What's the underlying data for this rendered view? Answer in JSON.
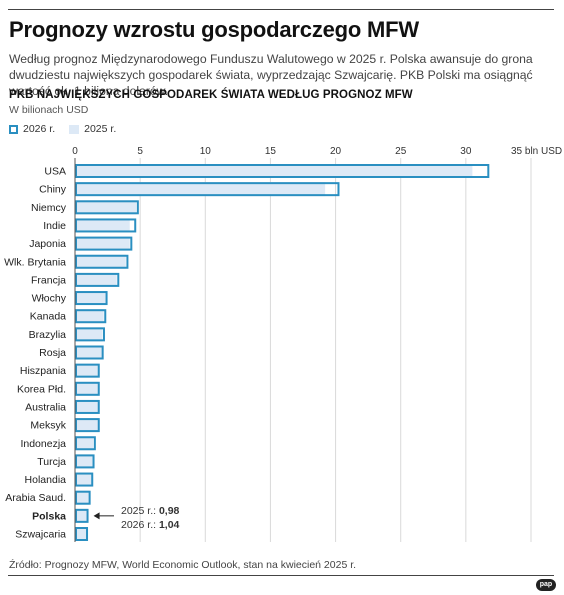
{
  "header": {
    "title": "Prognozy wzrostu gospodarczego MFW",
    "description": "Według prognoz Międzynarodowego Funduszu Walutowego w 2025 r. Polska awansuje do grona dwudziestu największych gospodarek świata, wyprzedzając Szwajcarię. PKB Polski ma osiągnąć wartość ok. 1 biliona dolarów."
  },
  "chart_data": {
    "type": "bar",
    "orientation": "horizontal",
    "title": "PKB NAJWIĘKSZYCH GOSPODAREK ŚWIATA WEDŁUG PROGNOZ MFW",
    "unit_label": "W bilionach USD",
    "xlim": [
      0,
      35
    ],
    "ticks": [
      {
        "value": 0,
        "label": "0"
      },
      {
        "value": 5,
        "label": "5"
      },
      {
        "value": 10,
        "label": "10"
      },
      {
        "value": 15,
        "label": "15"
      },
      {
        "value": 20,
        "label": "20"
      },
      {
        "value": 25,
        "label": "25"
      },
      {
        "value": 30,
        "label": "30"
      },
      {
        "value": 35,
        "label": "35 bln USD"
      }
    ],
    "legend": {
      "placement": "top-left",
      "label_2026": "2026 r.",
      "label_2025": "2025 r."
    },
    "categories": [
      "USA",
      "Chiny",
      "Niemcy",
      "Indie",
      "Japonia",
      "Wlk. Brytania",
      "Francja",
      "Włochy",
      "Kanada",
      "Brazylia",
      "Rosja",
      "Hiszpania",
      "Korea Płd.",
      "Australia",
      "Meksyk",
      "Indonezja",
      "Turcja",
      "Holandia",
      "Arabia Saud.",
      "Polska",
      "Szwajcaria"
    ],
    "highlight": "Polska",
    "series": [
      {
        "name": "2026 r.",
        "style": "outline",
        "color": "#2a8fc1",
        "values": [
          31.8,
          20.3,
          4.9,
          4.7,
          4.4,
          4.1,
          3.4,
          2.5,
          2.4,
          2.3,
          2.2,
          1.9,
          1.9,
          1.9,
          1.9,
          1.6,
          1.5,
          1.4,
          1.2,
          1.04,
          1.0
        ]
      },
      {
        "name": "2025 r.",
        "style": "fill",
        "color": "#dde9f6",
        "values": [
          30.5,
          19.2,
          4.7,
          4.2,
          4.2,
          3.9,
          3.2,
          2.4,
          2.2,
          2.1,
          2.1,
          1.8,
          1.8,
          1.8,
          1.8,
          1.4,
          1.4,
          1.3,
          1.1,
          0.98,
          0.94
        ]
      }
    ],
    "annotation": {
      "target": "Polska",
      "line1_label": "2025 r.:",
      "line1_value": "0,98",
      "line2_label": "2026 r.:",
      "line2_value": "1,04"
    }
  },
  "footer": {
    "source": "Źródło: Prognozy MFW, World Economic Outlook, stan na kwiecień 2025 r.",
    "logo": "pap"
  }
}
